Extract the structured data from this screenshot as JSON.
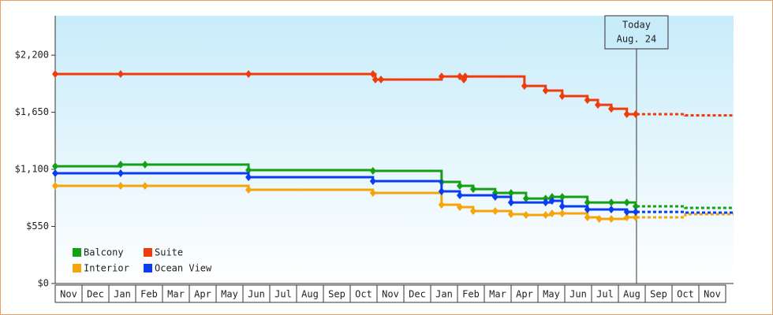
{
  "chart_data": {
    "type": "step-line",
    "categories": [
      "Nov",
      "Dec",
      "Jan",
      "Feb",
      "Mar",
      "Apr",
      "May",
      "Jun",
      "Jul",
      "Aug",
      "Sep",
      "Oct",
      "Nov",
      "Dec",
      "Jan",
      "Feb",
      "Mar",
      "Apr",
      "May",
      "Jun",
      "Jul",
      "Aug",
      "Sep",
      "Oct",
      "Nov"
    ],
    "xlim": [
      0,
      25.3
    ],
    "ylim": [
      0,
      2580
    ],
    "yticks": [
      {
        "value": 0,
        "label": "$0"
      },
      {
        "value": 550,
        "label": "$550"
      },
      {
        "value": 1100,
        "label": "$1,100"
      },
      {
        "value": 1650,
        "label": "$1,650"
      },
      {
        "value": 2200,
        "label": "$2,200"
      }
    ],
    "annotation": {
      "x": 21.68,
      "lines": [
        "Today",
        "Aug. 24"
      ]
    },
    "series": [
      {
        "name": "Balcony",
        "color": "#14a014",
        "x": [
          0,
          2.44,
          3.35,
          7.21,
          11.85,
          14.41,
          15.09,
          15.59,
          16.41,
          17.0,
          17.56,
          18.29,
          18.53,
          18.91,
          19.85,
          20.74,
          21.32,
          21.65
        ],
        "values": [
          1130,
          1146,
          1146,
          1093,
          1085,
          979,
          941,
          910,
          873,
          873,
          819,
          819,
          835,
          835,
          781,
          781,
          781,
          744
        ],
        "projection": {
          "x": [
            21.68,
            23.5,
            25.3
          ],
          "values": [
            744,
            728,
            728
          ]
        }
      },
      {
        "name": "Suite",
        "color": "#f03c0a",
        "x": [
          0,
          2.44,
          7.21,
          11.85,
          11.94,
          12.15,
          14.41,
          15.09,
          15.24,
          15.29,
          17.5,
          18.29,
          18.91,
          19.85,
          20.24,
          20.74,
          21.32,
          21.65
        ],
        "values": [
          2018,
          2018,
          2018,
          2018,
          1965,
          1965,
          1995,
          1995,
          1965,
          1995,
          1904,
          1859,
          1806,
          1768,
          1722,
          1684,
          1631,
          1631
        ],
        "projection": {
          "x": [
            21.68,
            23.5,
            25.3
          ],
          "values": [
            1631,
            1620,
            1620
          ]
        }
      },
      {
        "name": "Interior",
        "color": "#f5a50a",
        "x": [
          0,
          2.44,
          3.35,
          7.21,
          11.85,
          14.41,
          15.09,
          15.59,
          16.41,
          17.0,
          17.56,
          18.29,
          18.53,
          18.91,
          19.85,
          20.29,
          20.74,
          21.32,
          21.65
        ],
        "values": [
          941,
          941,
          941,
          903,
          873,
          759,
          736,
          698,
          698,
          668,
          660,
          660,
          675,
          675,
          637,
          622,
          622,
          637,
          637
        ],
        "projection": {
          "x": [
            21.68,
            23.5,
            25.3
          ],
          "values": [
            637,
            668,
            668
          ]
        }
      },
      {
        "name": "Ocean View",
        "color": "#0a3cf0",
        "x": [
          0,
          2.44,
          7.21,
          11.85,
          14.41,
          15.09,
          16.41,
          17.0,
          18.29,
          18.53,
          18.91,
          19.85,
          20.74,
          21.32,
          21.65
        ],
        "values": [
          1062,
          1062,
          1024,
          986,
          888,
          850,
          835,
          781,
          781,
          797,
          744,
          713,
          713,
          690,
          690
        ],
        "projection": {
          "x": [
            21.68,
            23.5,
            25.3
          ],
          "values": [
            690,
            683,
            683
          ]
        }
      }
    ]
  }
}
